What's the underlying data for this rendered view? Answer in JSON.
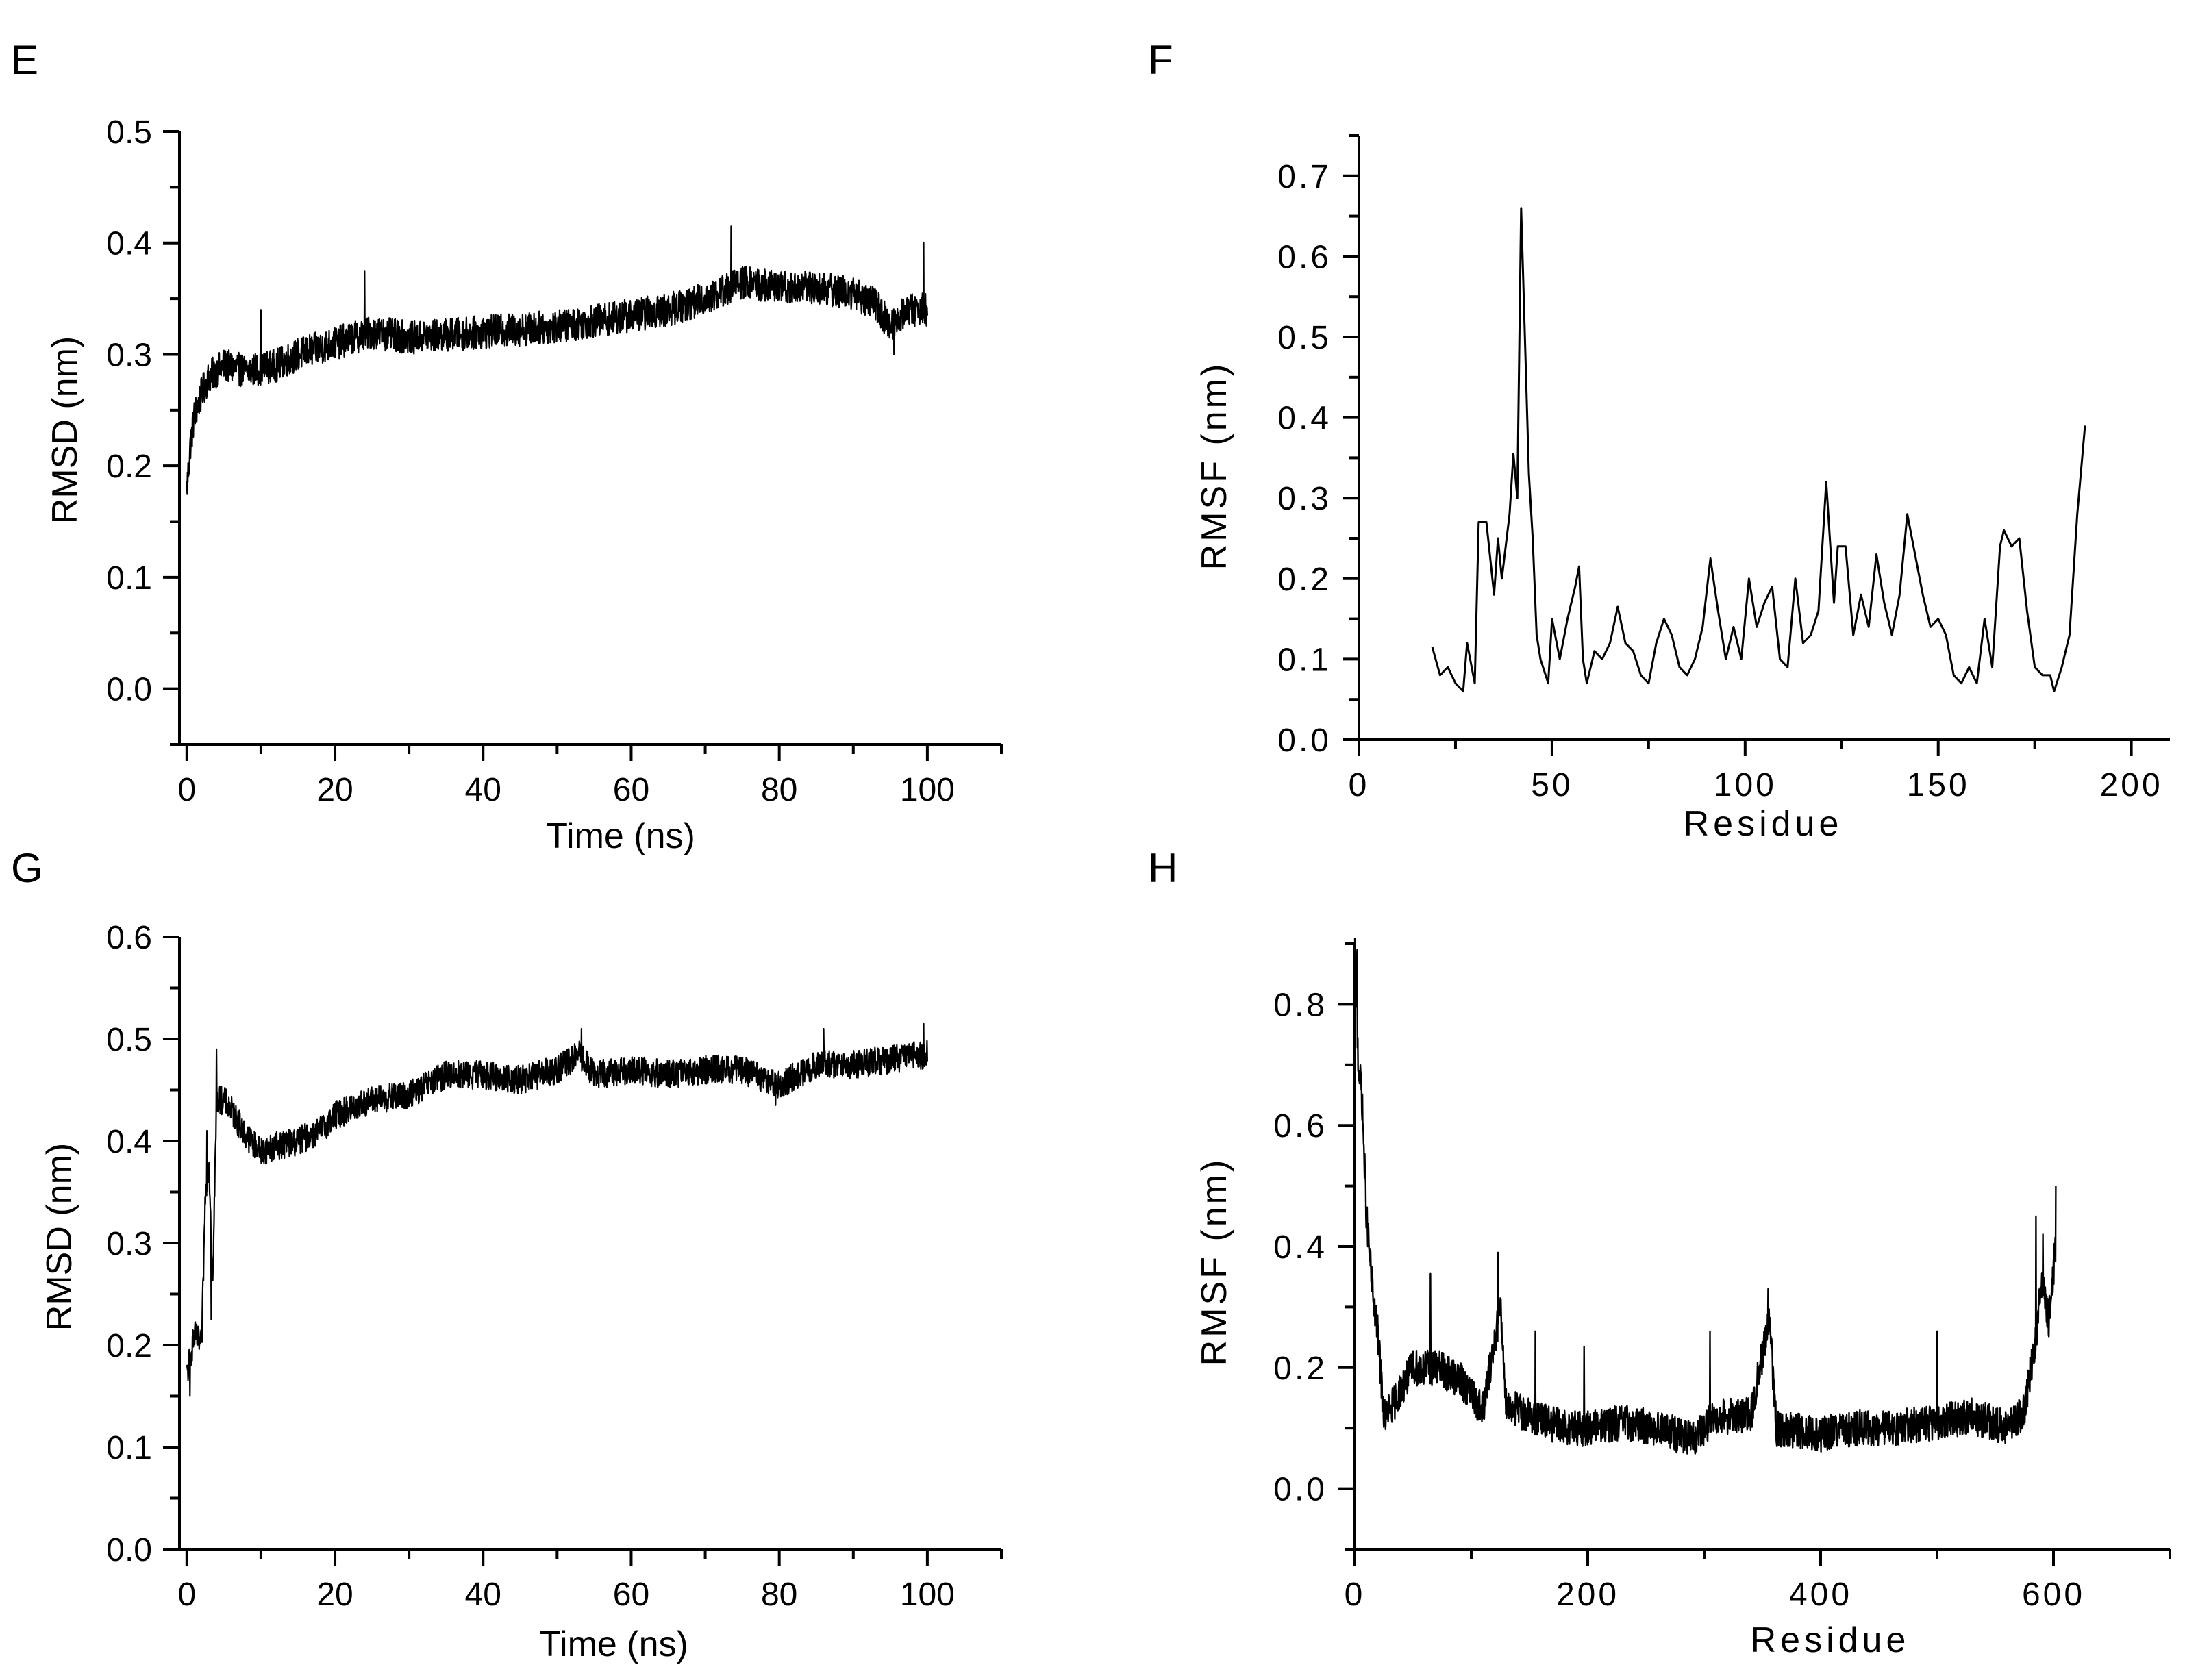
{
  "figure": {
    "panel_labels": [
      "E",
      "F",
      "G",
      "H"
    ]
  },
  "chart_data": [
    {
      "panel": "E",
      "type": "line",
      "title": "",
      "xlabel": "Time (ns)",
      "ylabel": "RMSD (nm)",
      "xlim": [
        -1,
        110
      ],
      "ylim": [
        -0.05,
        0.5
      ],
      "xticks": [
        "0",
        "20",
        "40",
        "60",
        "80",
        "100"
      ],
      "xtick_values": [
        0,
        20,
        40,
        60,
        80,
        100
      ],
      "yticks": [
        "0.0",
        "0.1",
        "0.2",
        "0.3",
        "0.4",
        "0.5"
      ],
      "ytick_values": [
        0.0,
        0.1,
        0.2,
        0.3,
        0.4,
        0.5
      ],
      "grid": false,
      "legend": "none",
      "trend": [
        [
          0,
          0.18
        ],
        [
          0.5,
          0.22
        ],
        [
          1,
          0.245
        ],
        [
          2,
          0.265
        ],
        [
          3,
          0.28
        ],
        [
          5,
          0.29
        ],
        [
          8,
          0.285
        ],
        [
          12,
          0.29
        ],
        [
          15,
          0.3
        ],
        [
          20,
          0.31
        ],
        [
          25,
          0.32
        ],
        [
          30,
          0.315
        ],
        [
          40,
          0.32
        ],
        [
          50,
          0.325
        ],
        [
          55,
          0.33
        ],
        [
          60,
          0.335
        ],
        [
          65,
          0.34
        ],
        [
          70,
          0.35
        ],
        [
          75,
          0.365
        ],
        [
          80,
          0.36
        ],
        [
          85,
          0.36
        ],
        [
          90,
          0.355
        ],
        [
          93,
          0.345
        ],
        [
          95,
          0.325
        ],
        [
          97,
          0.34
        ],
        [
          100,
          0.34
        ]
      ],
      "noise": 0.015,
      "spikes": [
        [
          73.5,
          0.415
        ],
        [
          99.5,
          0.4
        ],
        [
          95.5,
          0.3
        ],
        [
          24,
          0.375
        ],
        [
          10,
          0.34
        ]
      ]
    },
    {
      "panel": "F",
      "type": "line",
      "title": "",
      "xlabel": "Residue",
      "ylabel": "RMSF (nm)",
      "xlim": [
        0,
        210
      ],
      "ylim": [
        0,
        0.75
      ],
      "xticks": [
        "0",
        "50",
        "100",
        "150",
        "200"
      ],
      "xtick_values": [
        0,
        50,
        100,
        150,
        200
      ],
      "yticks": [
        "0.0",
        "0.1",
        "0.2",
        "0.3",
        "0.4",
        "0.5",
        "0.6",
        "0.7"
      ],
      "ytick_values": [
        0.0,
        0.1,
        0.2,
        0.3,
        0.4,
        0.5,
        0.6,
        0.7
      ],
      "grid": false,
      "legend": "none",
      "x": [
        19,
        21,
        23,
        25,
        27,
        28,
        30,
        31,
        33,
        35,
        36,
        37,
        39,
        40,
        41,
        42,
        44,
        45,
        46,
        47,
        49,
        50,
        52,
        54,
        56,
        57,
        58,
        59,
        61,
        63,
        65,
        67,
        69,
        71,
        73,
        75,
        77,
        79,
        81,
        83,
        85,
        87,
        89,
        91,
        93,
        95,
        97,
        99,
        101,
        103,
        105,
        107,
        109,
        111,
        113,
        115,
        117,
        119,
        121,
        123,
        124,
        126,
        128,
        130,
        132,
        134,
        136,
        138,
        140,
        142,
        144,
        146,
        148,
        150,
        152,
        154,
        156,
        158,
        160,
        162,
        164,
        166,
        167,
        169,
        171,
        173,
        175,
        177,
        179,
        180,
        182,
        184,
        186,
        188
      ],
      "y": [
        0.115,
        0.08,
        0.09,
        0.07,
        0.06,
        0.12,
        0.07,
        0.27,
        0.27,
        0.18,
        0.25,
        0.2,
        0.28,
        0.355,
        0.3,
        0.66,
        0.33,
        0.25,
        0.13,
        0.1,
        0.07,
        0.15,
        0.1,
        0.15,
        0.19,
        0.215,
        0.1,
        0.07,
        0.11,
        0.1,
        0.12,
        0.165,
        0.12,
        0.11,
        0.08,
        0.07,
        0.12,
        0.15,
        0.13,
        0.09,
        0.08,
        0.1,
        0.14,
        0.225,
        0.16,
        0.1,
        0.14,
        0.1,
        0.2,
        0.14,
        0.17,
        0.19,
        0.1,
        0.09,
        0.2,
        0.12,
        0.13,
        0.16,
        0.32,
        0.17,
        0.24,
        0.24,
        0.13,
        0.18,
        0.14,
        0.23,
        0.17,
        0.13,
        0.18,
        0.28,
        0.23,
        0.18,
        0.14,
        0.15,
        0.13,
        0.08,
        0.07,
        0.09,
        0.07,
        0.15,
        0.09,
        0.24,
        0.26,
        0.24,
        0.25,
        0.16,
        0.09,
        0.08,
        0.08,
        0.06,
        0.09,
        0.13,
        0.28,
        0.39
      ]
    },
    {
      "panel": "G",
      "type": "line",
      "title": "",
      "xlabel": "Time (ns)",
      "ylabel": "RMSD (nm)",
      "xlim": [
        -1,
        110
      ],
      "ylim": [
        0,
        0.6
      ],
      "xticks": [
        "0",
        "20",
        "40",
        "60",
        "80",
        "100"
      ],
      "xtick_values": [
        0,
        20,
        40,
        60,
        80,
        100
      ],
      "yticks": [
        "0.0",
        "0.1",
        "0.2",
        "0.3",
        "0.4",
        "0.5",
        "0.6"
      ],
      "ytick_values": [
        0.0,
        0.1,
        0.2,
        0.3,
        0.4,
        0.5,
        0.6
      ],
      "grid": false,
      "legend": "none",
      "trend": [
        [
          0,
          0.17
        ],
        [
          1,
          0.21
        ],
        [
          2,
          0.2
        ],
        [
          2.5,
          0.35
        ],
        [
          3,
          0.38
        ],
        [
          3.5,
          0.26
        ],
        [
          4,
          0.44
        ],
        [
          5,
          0.44
        ],
        [
          6,
          0.43
        ],
        [
          8,
          0.405
        ],
        [
          10,
          0.39
        ],
        [
          12,
          0.395
        ],
        [
          15,
          0.4
        ],
        [
          18,
          0.41
        ],
        [
          20,
          0.425
        ],
        [
          25,
          0.44
        ],
        [
          30,
          0.445
        ],
        [
          35,
          0.465
        ],
        [
          40,
          0.465
        ],
        [
          45,
          0.46
        ],
        [
          50,
          0.47
        ],
        [
          53,
          0.485
        ],
        [
          55,
          0.465
        ],
        [
          60,
          0.47
        ],
        [
          65,
          0.465
        ],
        [
          70,
          0.47
        ],
        [
          75,
          0.47
        ],
        [
          80,
          0.455
        ],
        [
          85,
          0.475
        ],
        [
          90,
          0.475
        ],
        [
          95,
          0.48
        ],
        [
          100,
          0.485
        ]
      ],
      "noise": 0.014,
      "spikes": [
        [
          2.7,
          0.41
        ],
        [
          3.3,
          0.225
        ],
        [
          4,
          0.49
        ],
        [
          0.4,
          0.15
        ],
        [
          53.3,
          0.51
        ],
        [
          86,
          0.51
        ],
        [
          99.5,
          0.515
        ],
        [
          79.5,
          0.435
        ]
      ]
    },
    {
      "panel": "H",
      "type": "line",
      "title": "",
      "xlabel": "Residue",
      "ylabel": "RMSF (nm)",
      "xlim": [
        0,
        700
      ],
      "ylim": [
        -0.1,
        0.9
      ],
      "xticks": [
        "0",
        "200",
        "400",
        "600"
      ],
      "xtick_values": [
        0,
        200,
        400,
        600
      ],
      "yticks": [
        "0.0",
        "0.2",
        "0.4",
        "0.6",
        "0.8"
      ],
      "ytick_values": [
        0.0,
        0.2,
        0.4,
        0.6,
        0.8
      ],
      "grid": false,
      "legend": "none",
      "trend": [
        [
          0,
          0.89
        ],
        [
          3,
          0.7
        ],
        [
          6,
          0.65
        ],
        [
          10,
          0.45
        ],
        [
          15,
          0.33
        ],
        [
          20,
          0.25
        ],
        [
          25,
          0.12
        ],
        [
          30,
          0.13
        ],
        [
          50,
          0.2
        ],
        [
          70,
          0.2
        ],
        [
          90,
          0.18
        ],
        [
          110,
          0.13
        ],
        [
          125,
          0.3
        ],
        [
          130,
          0.14
        ],
        [
          150,
          0.12
        ],
        [
          180,
          0.1
        ],
        [
          200,
          0.1
        ],
        [
          230,
          0.11
        ],
        [
          260,
          0.1
        ],
        [
          290,
          0.08
        ],
        [
          310,
          0.12
        ],
        [
          340,
          0.12
        ],
        [
          356,
          0.28
        ],
        [
          362,
          0.1
        ],
        [
          400,
          0.09
        ],
        [
          430,
          0.1
        ],
        [
          460,
          0.1
        ],
        [
          500,
          0.11
        ],
        [
          530,
          0.12
        ],
        [
          560,
          0.1
        ],
        [
          575,
          0.13
        ],
        [
          585,
          0.25
        ],
        [
          590,
          0.35
        ],
        [
          596,
          0.28
        ],
        [
          602,
          0.4
        ]
      ],
      "noise": 0.03,
      "spikes": [
        [
          2,
          0.89
        ],
        [
          5,
          0.69
        ],
        [
          65,
          0.355
        ],
        [
          123,
          0.39
        ],
        [
          155,
          0.26
        ],
        [
          197,
          0.235
        ],
        [
          305,
          0.26
        ],
        [
          355,
          0.33
        ],
        [
          500,
          0.26
        ],
        [
          585,
          0.45
        ],
        [
          591,
          0.42
        ],
        [
          604,
          0.5
        ]
      ]
    }
  ]
}
